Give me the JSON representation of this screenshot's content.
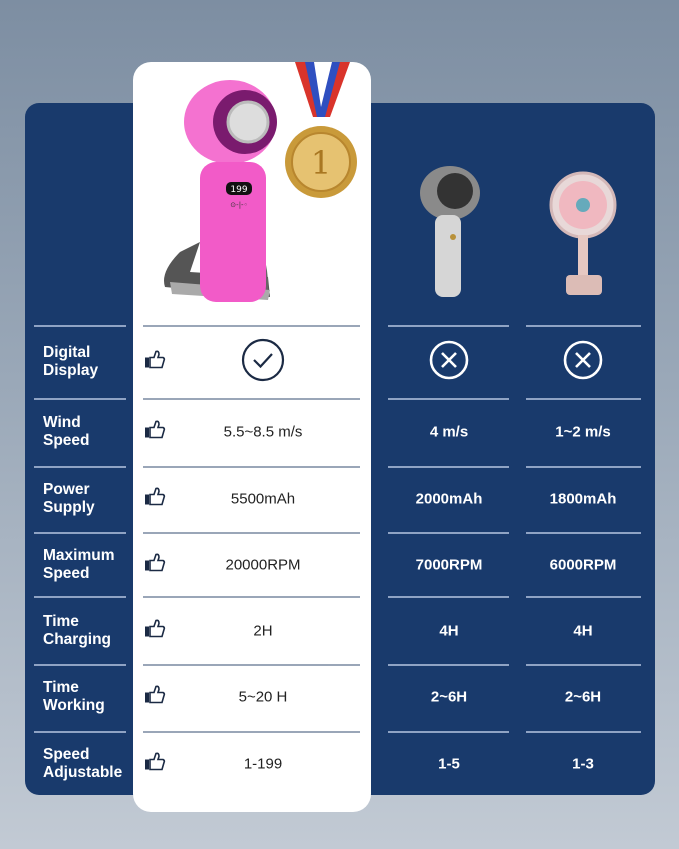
{
  "products": [
    {
      "name": "featured-fan",
      "highlight": true,
      "color": "#f25bc8",
      "display_digits": "199",
      "medal_number": "1"
    },
    {
      "name": "competitor-a"
    },
    {
      "name": "competitor-b"
    }
  ],
  "colors": {
    "panel": "#193a6c",
    "card": "#ffffff",
    "accent": "#f25bc8"
  },
  "rows": [
    {
      "label1": "Digital",
      "label2": "Display",
      "ours": {
        "icon": "check-circle-icon"
      },
      "a": {
        "icon": "x-circle-icon"
      },
      "b": {
        "icon": "x-circle-icon"
      }
    },
    {
      "label1": "Wind",
      "label2": "Speed",
      "ours": "5.5~8.5 m/s",
      "a": "4 m/s",
      "b": "1~2 m/s"
    },
    {
      "label1": "Power",
      "label2": "Supply",
      "ours": "5500mAh",
      "a": "2000mAh",
      "b": "1800mAh"
    },
    {
      "label1": "Maximum",
      "label2": "Speed",
      "ours": "20000RPM",
      "a": "7000RPM",
      "b": "6000RPM"
    },
    {
      "label1": "Time",
      "label2": "Charging",
      "ours": "2H",
      "a": "4H",
      "b": "4H"
    },
    {
      "label1": "Time",
      "label2": "Working",
      "ours": "5~20 H",
      "a": "2~6H",
      "b": "2~6H"
    },
    {
      "label1": "Speed",
      "label2": "Adjustable",
      "ours": "1-199",
      "a": "1-5",
      "b": "1-3"
    }
  ]
}
